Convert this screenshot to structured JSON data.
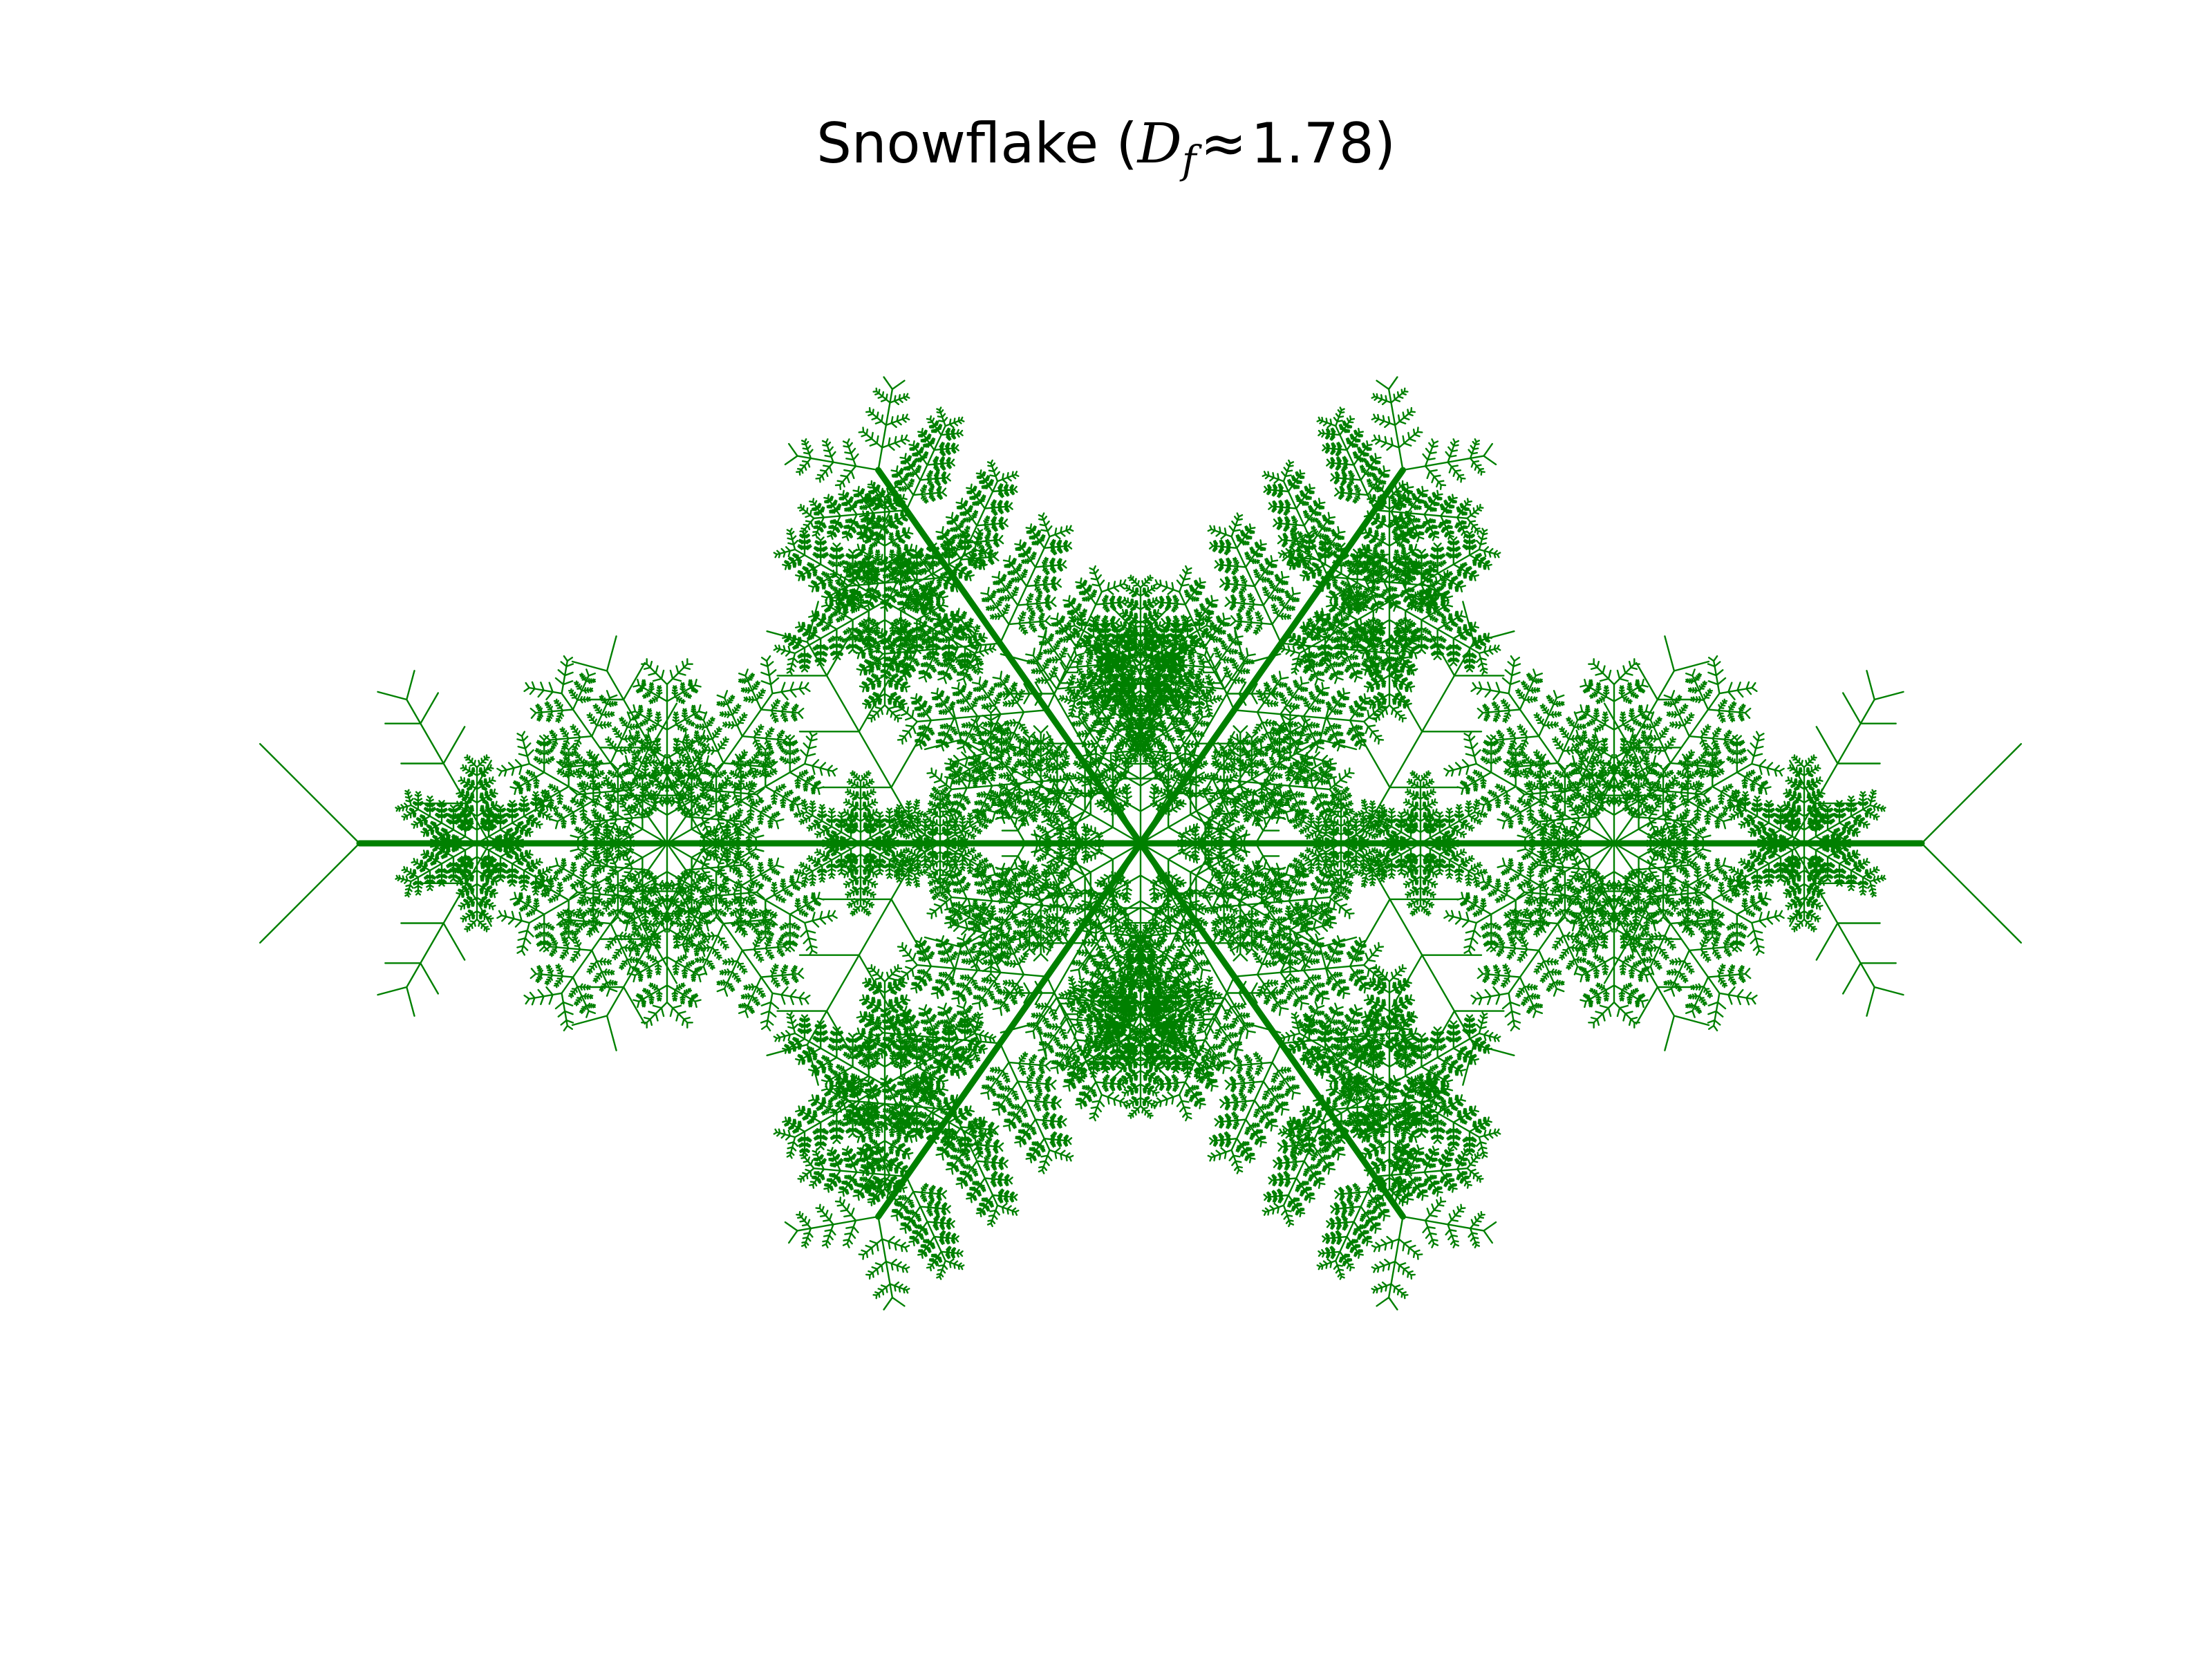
{
  "title": {
    "prefix": "Snowflake (",
    "symbol": "D",
    "subscript": "f",
    "relation": "≈",
    "value": "1.78",
    "suffix": ")"
  },
  "diagram": {
    "type": "fractal-snowflake",
    "symmetry_arms": 6,
    "color": "#008000",
    "background": "#ffffff"
  }
}
